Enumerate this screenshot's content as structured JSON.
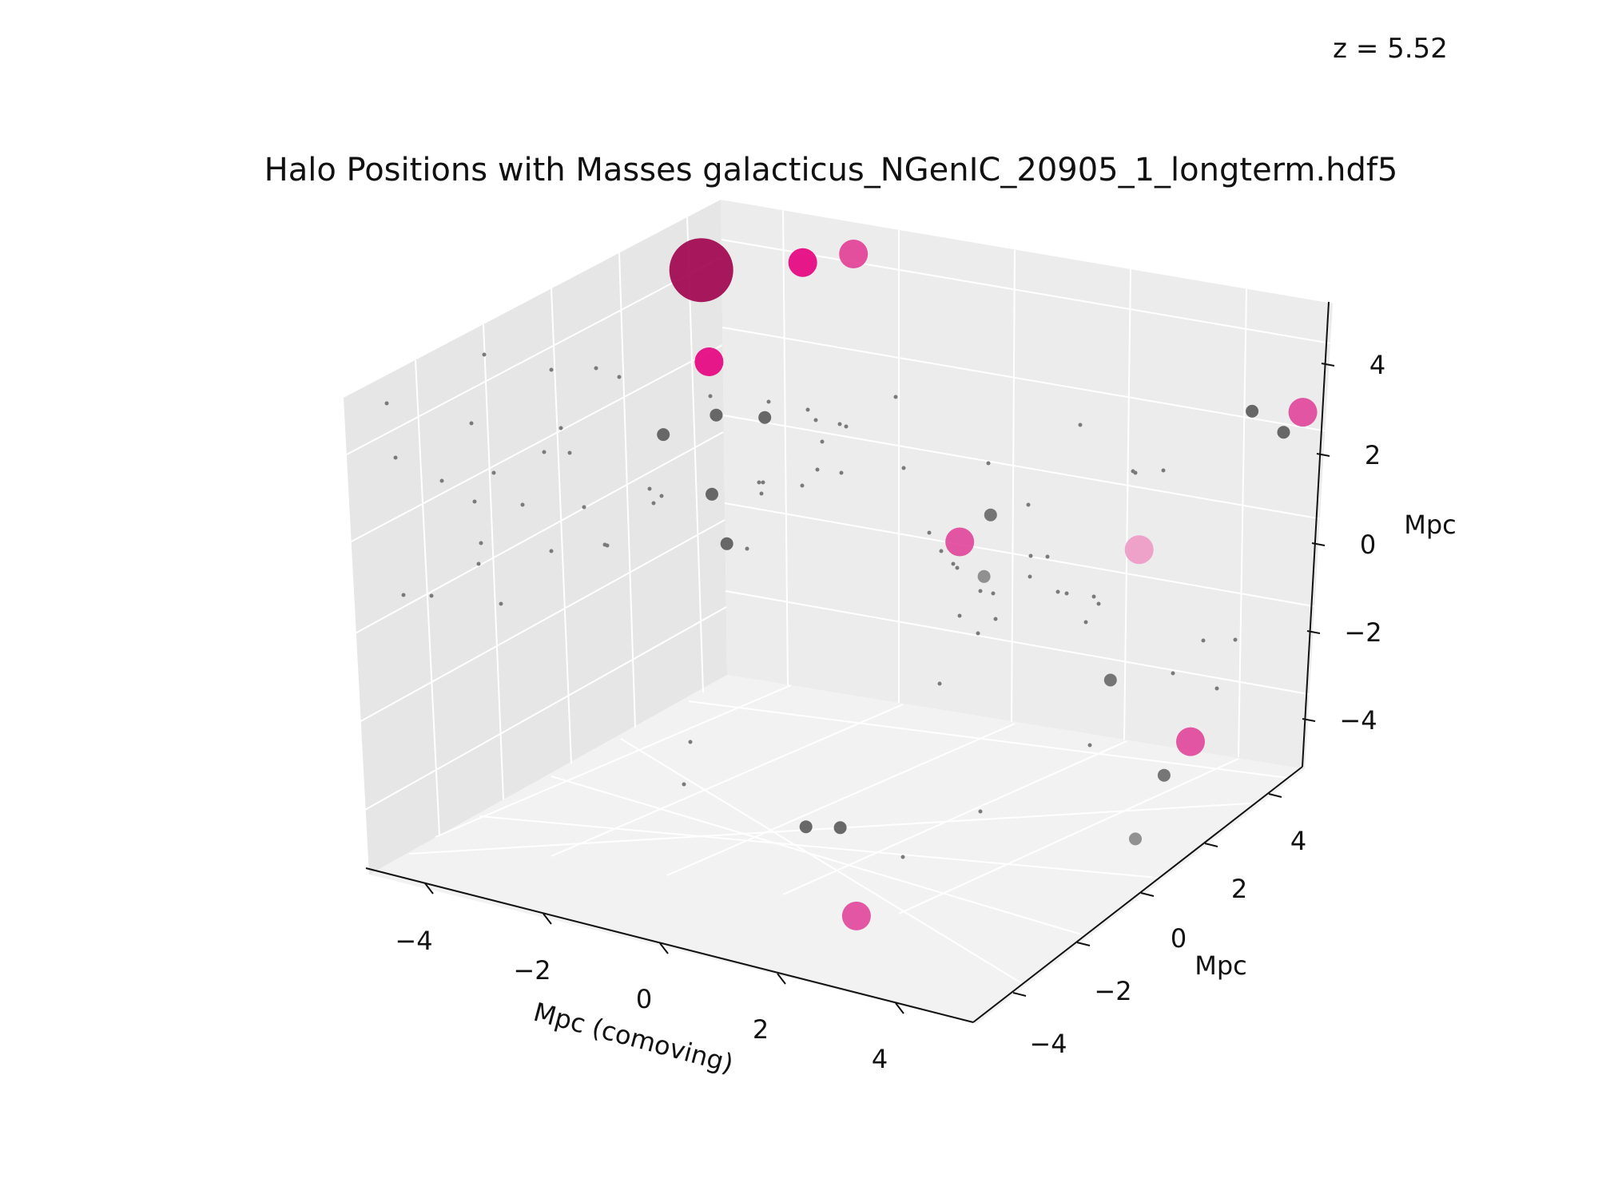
{
  "chart_data": {
    "type": "scatter",
    "projection": "3d",
    "title": "Halo Positions with Masses galacticus_NGenIC_20905_1_longterm.hdf5",
    "annotation": "z = 5.52",
    "xlabel": "Mpc (comoving)",
    "ylabel": "Mpc",
    "zlabel": "Mpc",
    "xlim": [
      -5,
      5
    ],
    "ylim": [
      -5,
      5
    ],
    "zlim": [
      -5,
      5
    ],
    "xticks": [
      "−4",
      "−2",
      "0",
      "2",
      "4"
    ],
    "yticks": [
      "−4",
      "−2",
      "0",
      "2",
      "4"
    ],
    "zticks": [
      "−4",
      "−2",
      "0",
      "2",
      "4"
    ],
    "grid": true,
    "colors": {
      "pane_back": "#ebebeb",
      "pane_side": "#e2e2e2",
      "pane_floor": "#f2f2f2",
      "grid": "#ffffff",
      "axis": "#111111"
    },
    "points_note": "Projected positions of halos; colour encodes mass class.",
    "points": [
      {
        "x": -4.6,
        "y": 3.6,
        "z": 4.2,
        "mass": "largest",
        "color": "#a0004c"
      },
      {
        "x": -4.0,
        "y": 2.8,
        "z": 2.8,
        "mass": "large",
        "color": "#e6007e"
      },
      {
        "x": -3.4,
        "y": 4.4,
        "z": 4.4,
        "mass": "large",
        "color": "#e6007e"
      },
      {
        "x": -2.8,
        "y": 4.8,
        "z": 4.6,
        "mass": "large",
        "color": "#e23e93"
      },
      {
        "x": 0.6,
        "y": 2.0,
        "z": 0.8,
        "mass": "large",
        "color": "#e0459a"
      },
      {
        "x": 4.6,
        "y": 4.8,
        "z": 3.6,
        "mass": "large",
        "color": "#e0459a"
      },
      {
        "x": 3.2,
        "y": 2.6,
        "z": 1.2,
        "mass": "large",
        "color": "#ee9ac6"
      },
      {
        "x": 4.4,
        "y": 2.0,
        "z": -2.2,
        "mass": "large",
        "color": "#e0459a"
      },
      {
        "x": 2.2,
        "y": -3.6,
        "z": -4.2,
        "mass": "large",
        "color": "#e0459a"
      },
      {
        "x": -4.4,
        "y": 2.2,
        "z": 1.4,
        "mass": "mid",
        "color": "#505050"
      },
      {
        "x": -4.0,
        "y": 3.0,
        "z": 1.6,
        "mass": "mid",
        "color": "#505050"
      },
      {
        "x": -3.6,
        "y": 2.2,
        "z": 0.4,
        "mass": "mid",
        "color": "#505050"
      },
      {
        "x": -3.0,
        "y": 1.6,
        "z": -0.2,
        "mass": "mid",
        "color": "#505050"
      },
      {
        "x": -3.2,
        "y": 3.0,
        "z": 1.8,
        "mass": "mid",
        "color": "#505050"
      },
      {
        "x": 0.4,
        "y": 3.2,
        "z": 0.8,
        "mass": "mid",
        "color": "#606060"
      },
      {
        "x": 1.0,
        "y": 2.0,
        "z": 0.2,
        "mass": "mid",
        "color": "#808080"
      },
      {
        "x": 4.0,
        "y": 4.4,
        "z": 3.6,
        "mass": "mid",
        "color": "#505050"
      },
      {
        "x": 4.4,
        "y": 4.6,
        "z": 3.2,
        "mass": "mid",
        "color": "#505050"
      },
      {
        "x": 3.2,
        "y": 1.8,
        "z": -1.2,
        "mass": "mid",
        "color": "#606060"
      },
      {
        "x": 4.2,
        "y": 1.6,
        "z": -2.8,
        "mass": "mid",
        "color": "#606060"
      },
      {
        "x": 4.2,
        "y": 0.8,
        "z": -3.8,
        "mass": "mid",
        "color": "#808080"
      },
      {
        "x": -0.4,
        "y": -0.6,
        "z": -4.4,
        "mass": "mid",
        "color": "#505050"
      },
      {
        "x": 0.4,
        "y": -1.0,
        "z": -4.0,
        "mass": "mid",
        "color": "#505050"
      }
    ]
  }
}
